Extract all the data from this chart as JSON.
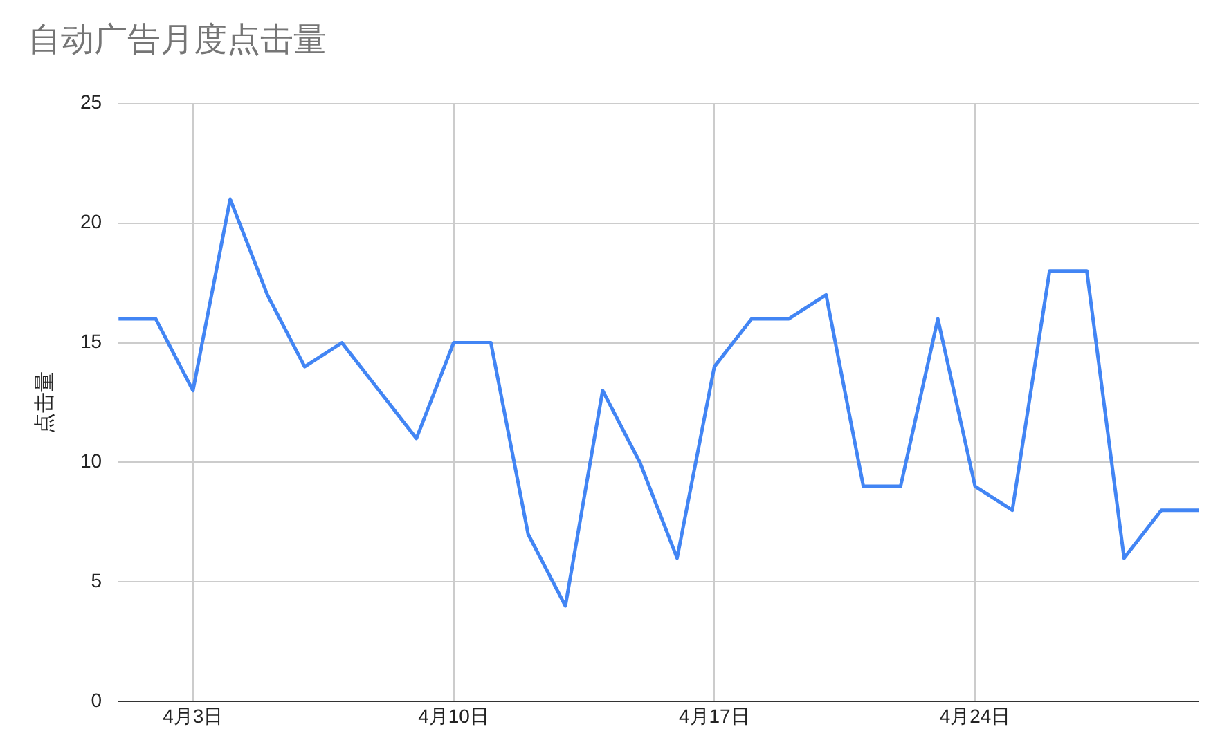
{
  "chart_data": {
    "type": "line",
    "title": "自动广告月度点击量",
    "ylabel": "点击量",
    "x": [
      "--04-01",
      "--04-02",
      "--04-03",
      "--04-04",
      "--04-05",
      "--04-06",
      "--04-07",
      "--04-08",
      "--04-09",
      "--04-10",
      "--04-11",
      "--04-12",
      "--04-13",
      "--04-14",
      "--04-15",
      "--04-16",
      "--04-17",
      "--04-18",
      "--04-19",
      "--04-20",
      "--04-21",
      "--04-22",
      "--04-23",
      "--04-24",
      "--04-25",
      "--04-26",
      "--04-27",
      "--04-28",
      "--04-29",
      "--04-30"
    ],
    "series": [
      {
        "color": "#4285f4",
        "values": [
          16,
          16,
          13,
          21,
          17,
          14,
          15,
          13,
          11,
          15,
          15,
          7,
          4,
          13,
          10,
          6,
          14,
          16,
          16,
          17,
          9,
          9,
          16,
          9,
          8,
          18,
          18,
          6,
          8,
          8
        ]
      }
    ],
    "xlim": [
      "--04-01",
      "--04-30"
    ],
    "xticks": [
      {
        "value": "--04-03",
        "label": "4月3日"
      },
      {
        "value": "--04-10",
        "label": "4月10日"
      },
      {
        "value": "--04-17",
        "label": "4月17日"
      },
      {
        "value": "--04-24",
        "label": "4月24日"
      }
    ],
    "ylim": [
      0,
      25
    ],
    "yticks": [
      0,
      5,
      10,
      15,
      20,
      25
    ],
    "grid": true,
    "legend": false,
    "marker": "none",
    "line_style": "solid"
  }
}
